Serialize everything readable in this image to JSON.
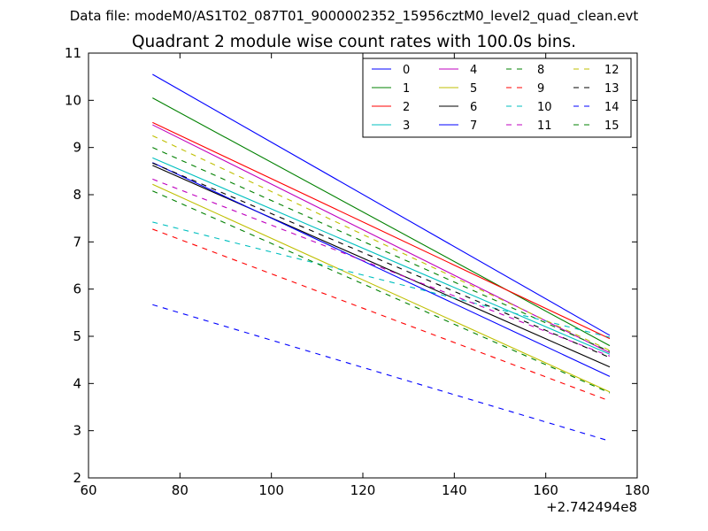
{
  "figure": {
    "suptitle": "Data file: modeM0/AS1T02_087T01_9000002352_15956cztM0_level2_quad_clean.evt"
  },
  "chart_data": {
    "type": "line",
    "title": "Quadrant 2 module wise count rates with 100.0s bins.",
    "xlabel": "",
    "ylabel": "",
    "x_offset_label": "+2.742494e8",
    "xlim": [
      60,
      180
    ],
    "ylim": [
      2,
      11
    ],
    "xticks": [
      60,
      80,
      100,
      120,
      140,
      160,
      180
    ],
    "yticks": [
      2,
      3,
      4,
      5,
      6,
      7,
      8,
      9,
      10,
      11
    ],
    "grid": false,
    "legend": {
      "placement": "top-right",
      "columns": 4
    },
    "x": [
      74,
      174
    ],
    "series": [
      {
        "name": "0",
        "values": [
          10.55,
          5.02
        ],
        "color": "#0000ff",
        "dash": "solid"
      },
      {
        "name": "1",
        "values": [
          10.05,
          4.8
        ],
        "color": "#008000",
        "dash": "solid"
      },
      {
        "name": "2",
        "values": [
          9.53,
          4.95
        ],
        "color": "#ff0000",
        "dash": "solid"
      },
      {
        "name": "3",
        "values": [
          8.78,
          4.62
        ],
        "color": "#00bfbf",
        "dash": "solid"
      },
      {
        "name": "4",
        "values": [
          9.48,
          4.65
        ],
        "color": "#bf00bf",
        "dash": "solid"
      },
      {
        "name": "5",
        "values": [
          8.22,
          3.82
        ],
        "color": "#bfbf00",
        "dash": "solid"
      },
      {
        "name": "6",
        "values": [
          8.62,
          4.35
        ],
        "color": "#000000",
        "dash": "solid"
      },
      {
        "name": "7",
        "values": [
          8.68,
          4.15
        ],
        "color": "#0000ff",
        "dash": "solid"
      },
      {
        "name": "8",
        "values": [
          9.0,
          4.68
        ],
        "color": "#008000",
        "dash": "dashed"
      },
      {
        "name": "9",
        "values": [
          7.27,
          3.63
        ],
        "color": "#ff0000",
        "dash": "dashed"
      },
      {
        "name": "10",
        "values": [
          7.42,
          4.98
        ],
        "color": "#00bfbf",
        "dash": "dashed"
      },
      {
        "name": "11",
        "values": [
          8.33,
          4.58
        ],
        "color": "#bf00bf",
        "dash": "dashed"
      },
      {
        "name": "12",
        "values": [
          9.25,
          4.7
        ],
        "color": "#bfbf00",
        "dash": "dashed"
      },
      {
        "name": "13",
        "values": [
          8.67,
          4.55
        ],
        "color": "#000000",
        "dash": "dashed"
      },
      {
        "name": "14",
        "values": [
          5.67,
          2.78
        ],
        "color": "#0000ff",
        "dash": "dashed"
      },
      {
        "name": "15",
        "values": [
          8.08,
          3.8
        ],
        "color": "#008000",
        "dash": "dashed"
      }
    ]
  }
}
